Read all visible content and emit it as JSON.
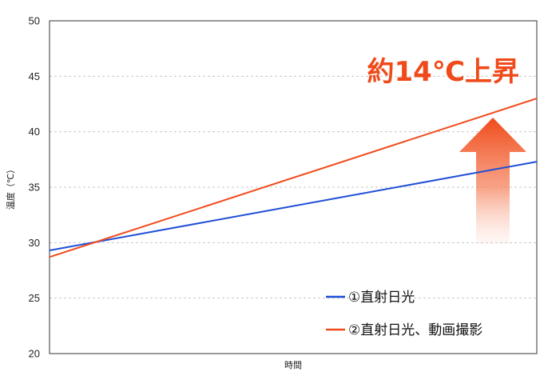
{
  "chart_data": {
    "type": "line",
    "xlabel": "時間",
    "ylabel": "温度（℃）",
    "ylim": [
      20,
      50
    ],
    "yticks": [
      "20",
      "25",
      "30",
      "35",
      "40",
      "45",
      "50"
    ],
    "grid": "horizontal dashed",
    "series": [
      {
        "name": "①直射日光",
        "color": "#1f4fd6",
        "x": [
          0,
          1
        ],
        "y": [
          29.3,
          37.3
        ]
      },
      {
        "name": "②直射日光、動画撮影",
        "color": "#f04a1a",
        "x": [
          0,
          1
        ],
        "y": [
          28.7,
          43.0
        ]
      }
    ],
    "annotation": {
      "text": "約14℃上昇",
      "color": "#f04a1a"
    },
    "legend_position": "bottom-right"
  }
}
